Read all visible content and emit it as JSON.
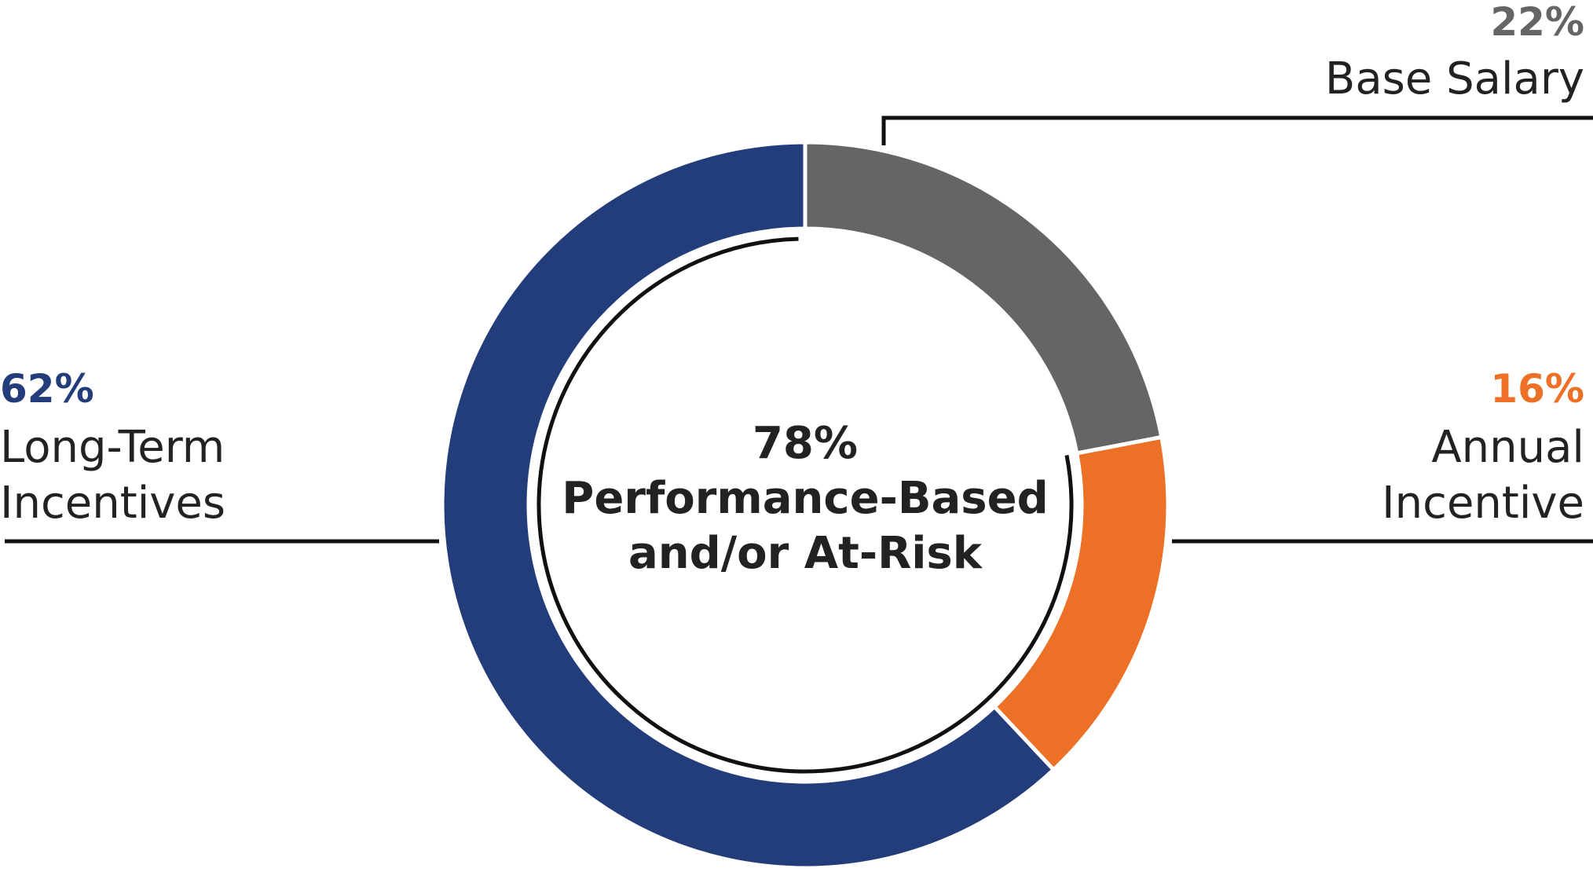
{
  "chart_data": {
    "type": "pie",
    "categories": [
      "Base Salary",
      "Annual\nIncentive",
      "Long-Term\nIncentives"
    ],
    "values": [
      22,
      16,
      62
    ],
    "value_labels": [
      "22%",
      "16%",
      "62%"
    ],
    "colors": [
      "#656664",
      "#ec7126",
      "#233d7b"
    ],
    "center": {
      "value": 78,
      "label": "78%",
      "text": "Performance-Based\nand/or At-Risk"
    }
  }
}
